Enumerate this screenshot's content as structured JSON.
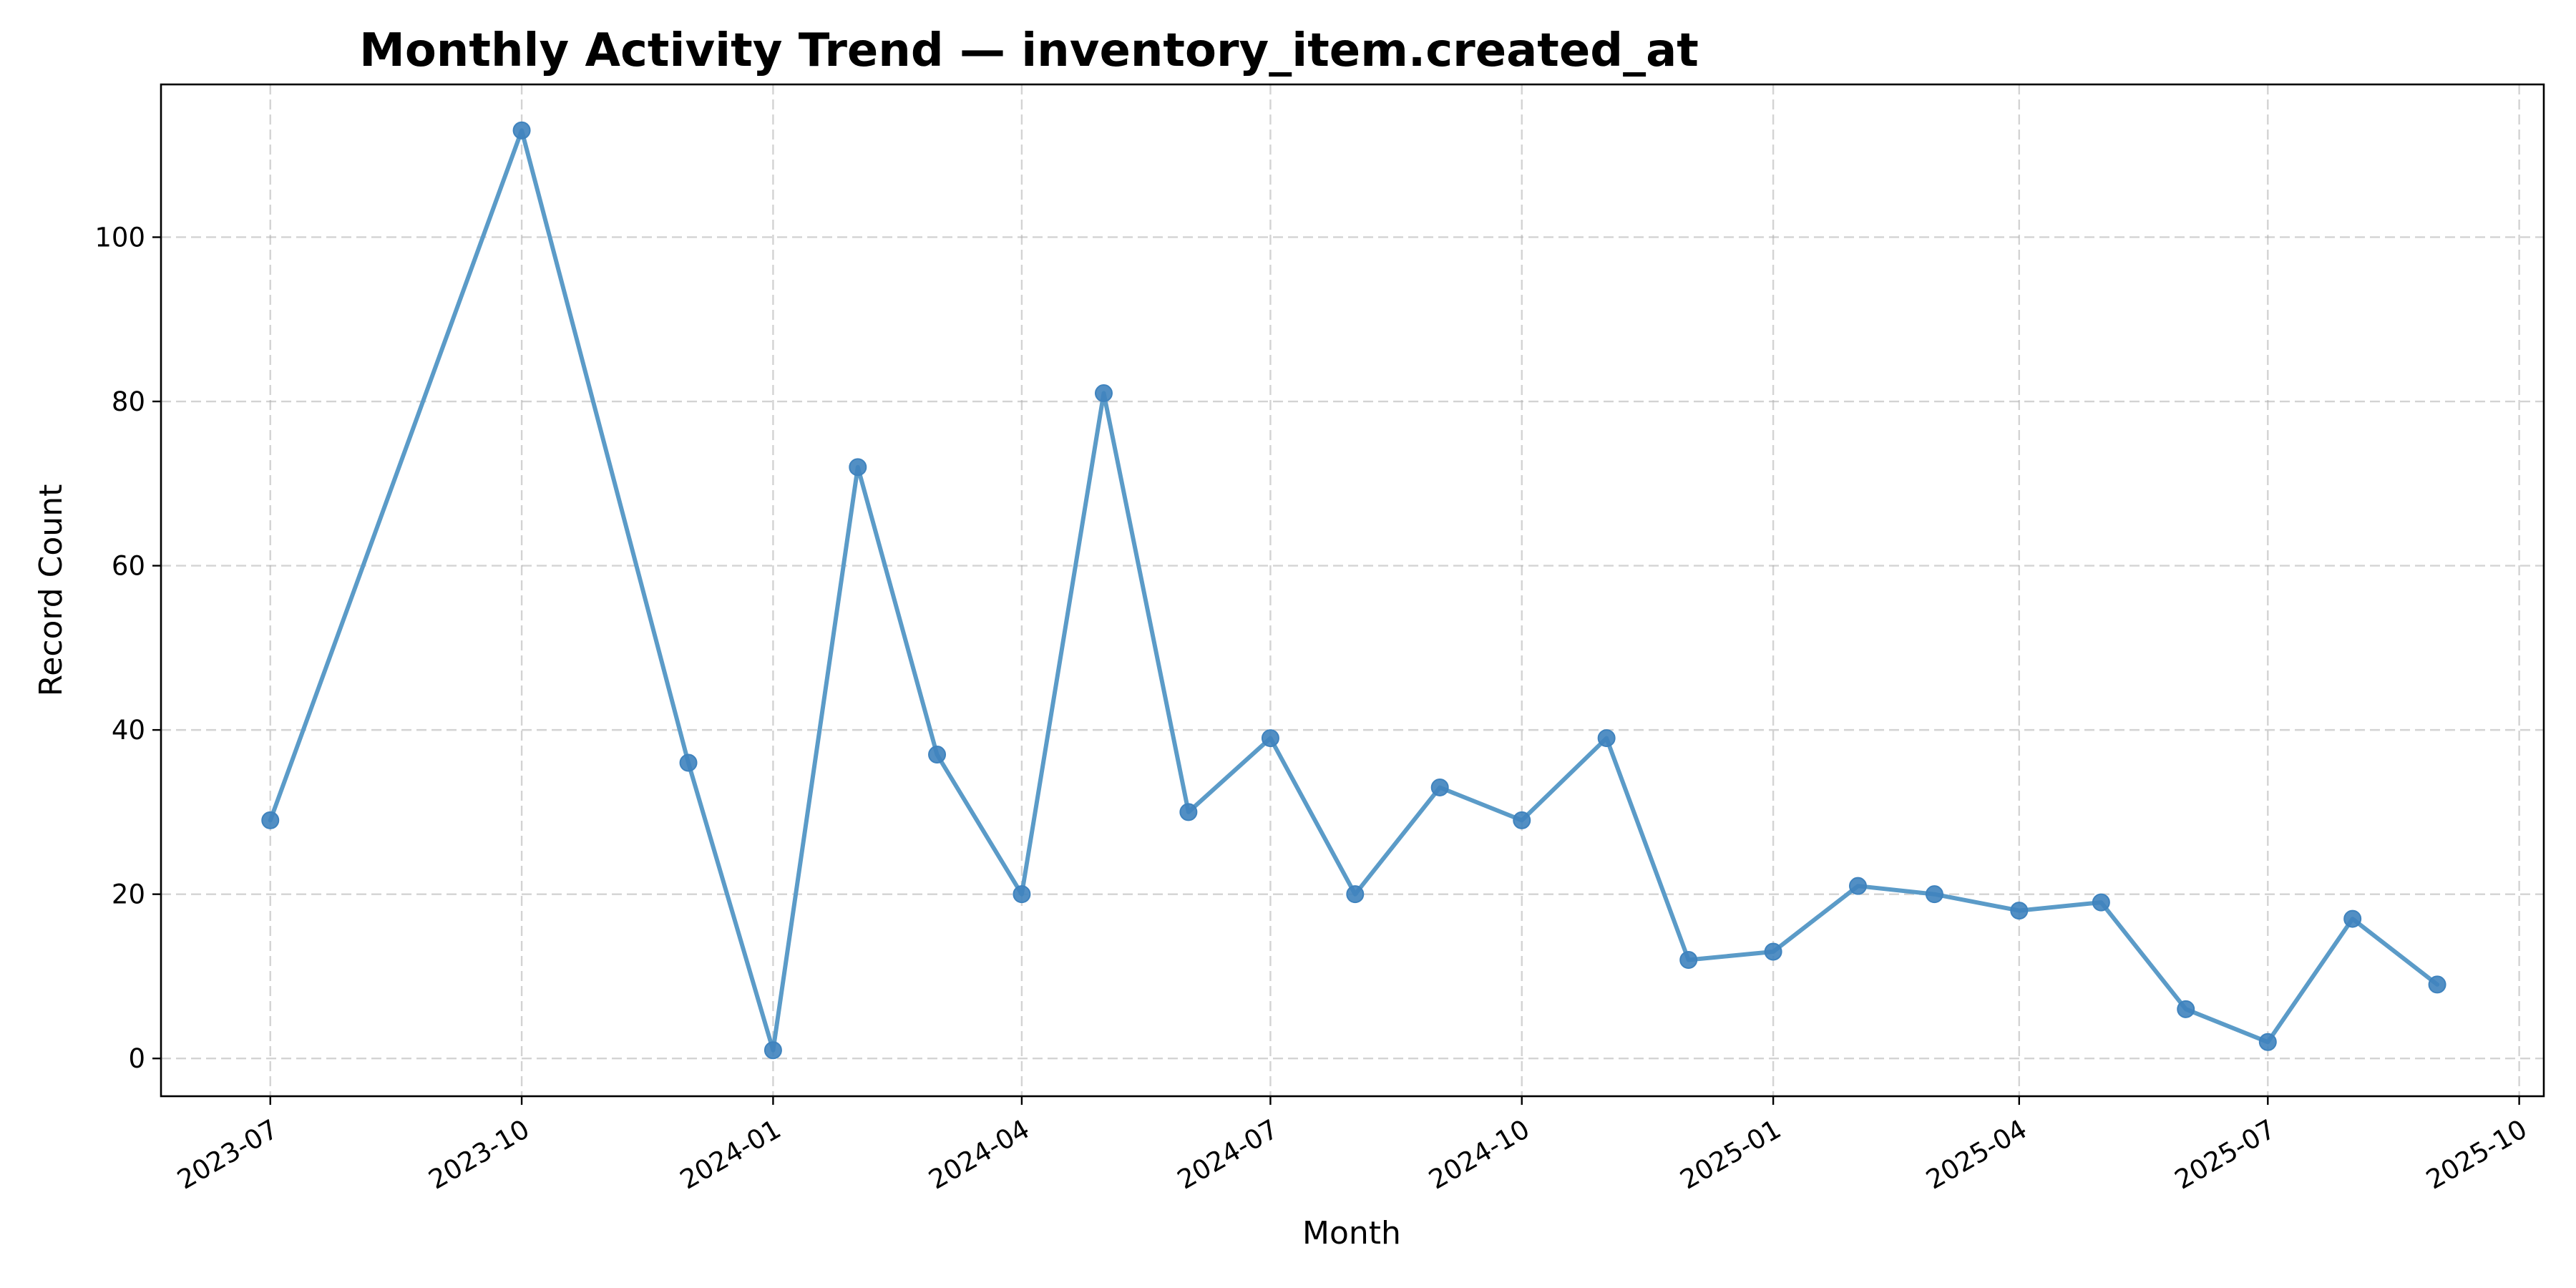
{
  "chart_data": {
    "type": "line",
    "title": "Monthly Activity Trend — inventory_item.created_at",
    "xlabel": "Month",
    "ylabel": "Record Count",
    "grid": true,
    "legend": "none",
    "x_axis_type": "date",
    "xlim": [
      "2023-05-22",
      "2025-10-10"
    ],
    "ylim": [
      -4.6,
      118.6
    ],
    "x_ticks": [
      "2023-07",
      "2023-10",
      "2024-01",
      "2024-04",
      "2024-07",
      "2024-10",
      "2025-01",
      "2025-04",
      "2025-07",
      "2025-10"
    ],
    "x_tick_dates": [
      "2023-07-01",
      "2023-10-01",
      "2024-01-01",
      "2024-04-01",
      "2024-07-01",
      "2024-10-01",
      "2025-01-01",
      "2025-04-01",
      "2025-07-01",
      "2025-10-01"
    ],
    "y_ticks": [
      0,
      20,
      40,
      60,
      80,
      100
    ],
    "line_color": "#5b9bc8",
    "marker_color": "#3f83be",
    "series": [
      {
        "x": [
          "2023-07-01",
          "2023-10-01",
          "2023-12-01",
          "2024-01-01",
          "2024-02-01",
          "2024-03-01",
          "2024-04-01",
          "2024-05-01",
          "2024-06-01",
          "2024-07-01",
          "2024-08-01",
          "2024-09-01",
          "2024-10-01",
          "2024-11-01",
          "2024-12-01",
          "2025-01-01",
          "2025-02-01",
          "2025-03-01",
          "2025-04-01",
          "2025-05-01",
          "2025-06-01",
          "2025-07-01",
          "2025-08-01",
          "2025-09-01"
        ],
        "values": [
          29,
          113,
          36,
          1,
          72,
          37,
          20,
          81,
          30,
          39,
          20,
          33,
          29,
          39,
          12,
          13,
          21,
          20,
          18,
          19,
          6,
          2,
          17,
          9
        ]
      }
    ]
  }
}
